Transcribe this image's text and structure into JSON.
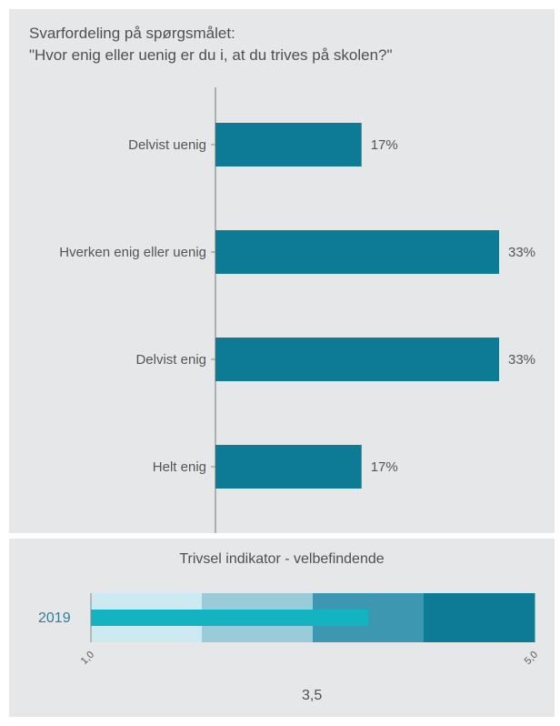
{
  "chart_data": [
    {
      "type": "bar",
      "title_line1": "Svarfordeling på spørgsmålet:",
      "title_line2": "\"Hvor enig eller uenig er du i, at du trives på skolen?\"",
      "categories": [
        "Delvist uenig",
        "Hverken enig eller uenig",
        "Delvist enig",
        "Helt enig"
      ],
      "values": [
        17,
        33,
        33,
        17
      ],
      "value_labels": [
        "17%",
        "33%",
        "33%",
        "17%"
      ],
      "xlim": [
        0,
        33
      ],
      "orientation": "horizontal",
      "color": "#0e7b96"
    },
    {
      "type": "bullet",
      "title": "Trivsel indikator - velbefindende",
      "series_label": "2019",
      "value": 3.5,
      "value_label": "3,5",
      "range": [
        1.0,
        5.0
      ],
      "range_min_label": "1,0",
      "range_max_label": "5,0",
      "band_colors": [
        "#cde9f1",
        "#9acbd8",
        "#3d97b0",
        "#0e7b96"
      ],
      "bar_color": "#13b3c1"
    }
  ]
}
